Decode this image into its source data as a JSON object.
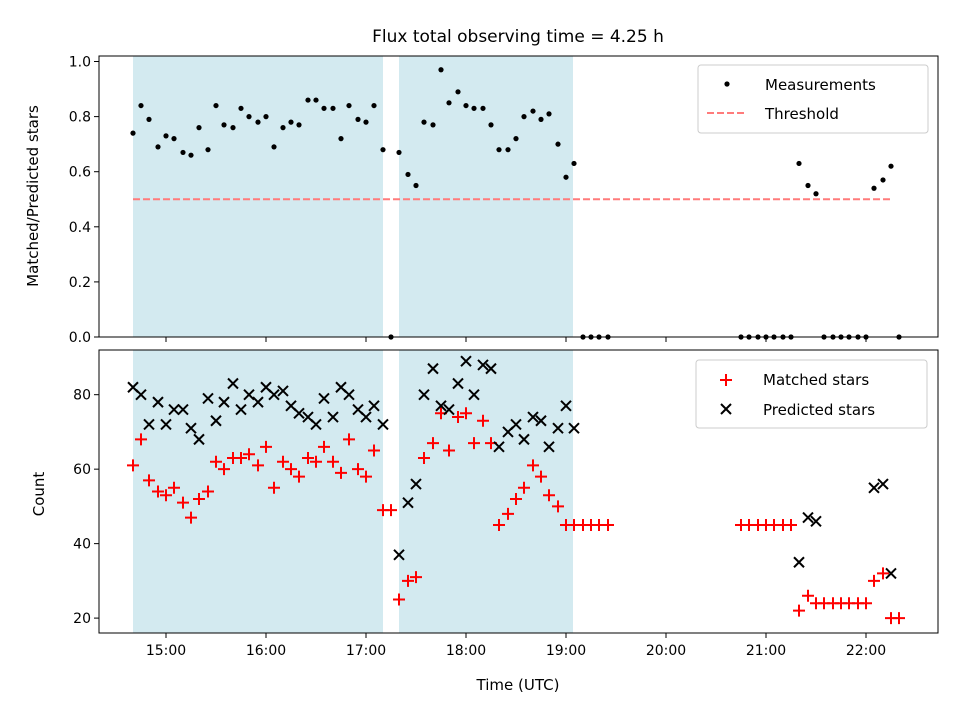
{
  "figure": {
    "title": "Flux total observing time = 4.25 h",
    "xlabel": "Time (UTC)",
    "x_tick_labels": [
      "15:00",
      "16:00",
      "17:00",
      "18:00",
      "19:00",
      "20:00",
      "21:00",
      "22:00"
    ]
  },
  "chart_data": [
    {
      "type": "scatter",
      "panel": "top",
      "ylabel": "Matched/Predicted stars",
      "xlim": [
        14.33,
        22.72
      ],
      "ylim": [
        0.0,
        1.02
      ],
      "y_ticks": [
        0.0,
        0.2,
        0.4,
        0.6,
        0.8,
        1.0
      ],
      "y_tick_labels": [
        "0.0",
        "0.2",
        "0.4",
        "0.6",
        "0.8",
        "1.0"
      ],
      "legend_position": "top-right",
      "shaded_intervals": [
        [
          14.67,
          17.17
        ],
        [
          17.33,
          19.07
        ]
      ],
      "shade_color": "#d3eaf0",
      "series": [
        {
          "name": "Measurements",
          "marker": "dot",
          "color": "#000000",
          "x": [
            14.67,
            14.75,
            14.83,
            14.92,
            15.0,
            15.08,
            15.17,
            15.25,
            15.33,
            15.42,
            15.5,
            15.58,
            15.67,
            15.75,
            15.83,
            15.92,
            16.0,
            16.08,
            16.17,
            16.25,
            16.33,
            16.42,
            16.5,
            16.58,
            16.67,
            16.75,
            16.83,
            16.92,
            17.0,
            17.08,
            17.17,
            17.25,
            17.33,
            17.42,
            17.5,
            17.58,
            17.67,
            17.75,
            17.83,
            17.92,
            18.0,
            18.08,
            18.17,
            18.25,
            18.33,
            18.42,
            18.5,
            18.58,
            18.67,
            18.75,
            18.83,
            18.92,
            19.0,
            19.08,
            19.17,
            19.25,
            19.33,
            19.42,
            20.75,
            20.83,
            20.92,
            21.0,
            21.08,
            21.17,
            21.25,
            21.33,
            21.42,
            21.5,
            21.58,
            21.67,
            21.75,
            21.83,
            21.92,
            22.0,
            22.08,
            22.17,
            22.25,
            22.33
          ],
          "y": [
            0.74,
            0.84,
            0.79,
            0.69,
            0.73,
            0.72,
            0.67,
            0.66,
            0.76,
            0.68,
            0.84,
            0.77,
            0.76,
            0.83,
            0.8,
            0.78,
            0.8,
            0.69,
            0.76,
            0.78,
            0.77,
            0.86,
            0.86,
            0.83,
            0.83,
            0.72,
            0.84,
            0.79,
            0.78,
            0.84,
            0.68,
            0.0,
            0.67,
            0.59,
            0.55,
            0.78,
            0.77,
            0.97,
            0.85,
            0.89,
            0.84,
            0.83,
            0.83,
            0.77,
            0.68,
            0.68,
            0.72,
            0.8,
            0.82,
            0.79,
            0.81,
            0.7,
            0.58,
            0.63,
            0.0,
            0.0,
            0.0,
            0.0,
            0.0,
            0.0,
            0.0,
            0.0,
            0.0,
            0.0,
            0.0,
            0.63,
            0.55,
            0.52,
            0.0,
            0.0,
            0.0,
            0.0,
            0.0,
            0.0,
            0.54,
            0.57,
            0.62,
            0.0
          ]
        },
        {
          "name": "Threshold",
          "marker": "dashed-line",
          "color": "#ff7b7b",
          "x": [
            14.67,
            22.25
          ],
          "y": [
            0.5,
            0.5
          ]
        }
      ]
    },
    {
      "type": "scatter",
      "panel": "bottom",
      "ylabel": "Count",
      "xlim": [
        14.33,
        22.72
      ],
      "ylim": [
        16,
        92
      ],
      "y_ticks": [
        20,
        40,
        60,
        80
      ],
      "y_tick_labels": [
        "20",
        "40",
        "60",
        "80"
      ],
      "legend_position": "top-right",
      "shaded_intervals": [
        [
          14.67,
          17.17
        ],
        [
          17.33,
          19.07
        ]
      ],
      "shade_color": "#d3eaf0",
      "series": [
        {
          "name": "Matched stars",
          "marker": "plus",
          "color": "#ff0000",
          "x": [
            14.67,
            14.75,
            14.83,
            14.92,
            15.0,
            15.08,
            15.17,
            15.25,
            15.33,
            15.42,
            15.5,
            15.58,
            15.67,
            15.75,
            15.83,
            15.92,
            16.0,
            16.08,
            16.17,
            16.25,
            16.33,
            16.42,
            16.5,
            16.58,
            16.67,
            16.75,
            16.83,
            16.92,
            17.0,
            17.08,
            17.17,
            17.25,
            17.33,
            17.42,
            17.5,
            17.58,
            17.67,
            17.75,
            17.83,
            17.92,
            18.0,
            18.08,
            18.17,
            18.25,
            18.33,
            18.42,
            18.5,
            18.58,
            18.67,
            18.75,
            18.83,
            18.92,
            19.0,
            19.08,
            19.17,
            19.25,
            19.33,
            19.42,
            20.75,
            20.83,
            20.92,
            21.0,
            21.08,
            21.17,
            21.25,
            21.33,
            21.42,
            21.5,
            21.58,
            21.67,
            21.75,
            21.83,
            21.92,
            22.0,
            22.08,
            22.17,
            22.25,
            22.33
          ],
          "y": [
            61,
            68,
            57,
            54,
            53,
            55,
            51,
            47,
            52,
            54,
            62,
            60,
            63,
            63,
            64,
            61,
            66,
            55,
            62,
            60,
            58,
            63,
            62,
            66,
            62,
            59,
            68,
            60,
            58,
            65,
            49,
            49,
            25,
            30,
            31,
            63,
            67,
            75,
            65,
            74,
            75,
            67,
            73,
            67,
            45,
            48,
            52,
            55,
            61,
            58,
            53,
            50,
            45,
            45,
            45,
            45,
            45,
            45,
            45,
            45,
            45,
            45,
            45,
            45,
            45,
            22,
            26,
            24,
            24,
            24,
            24,
            24,
            24,
            24,
            30,
            32,
            20,
            20
          ]
        },
        {
          "name": "Predicted stars",
          "marker": "x",
          "color": "#000000",
          "x": [
            14.67,
            14.75,
            14.83,
            14.92,
            15.0,
            15.08,
            15.17,
            15.25,
            15.33,
            15.42,
            15.5,
            15.58,
            15.67,
            15.75,
            15.83,
            15.92,
            16.0,
            16.08,
            16.17,
            16.25,
            16.33,
            16.42,
            16.5,
            16.58,
            16.67,
            16.75,
            16.83,
            16.92,
            17.0,
            17.08,
            17.17,
            17.33,
            17.42,
            17.5,
            17.58,
            17.67,
            17.75,
            17.83,
            17.92,
            18.0,
            18.08,
            18.17,
            18.25,
            18.33,
            18.42,
            18.5,
            18.58,
            18.67,
            18.75,
            18.83,
            18.92,
            19.0,
            19.08,
            21.33,
            21.42,
            21.5,
            22.08,
            22.17,
            22.25
          ],
          "y": [
            82,
            80,
            72,
            78,
            72,
            76,
            76,
            71,
            68,
            79,
            73,
            78,
            83,
            76,
            80,
            78,
            82,
            80,
            81,
            77,
            75,
            74,
            72,
            79,
            74,
            82,
            80,
            76,
            74,
            77,
            72,
            37,
            51,
            56,
            80,
            87,
            77,
            76,
            83,
            89,
            80,
            88,
            87,
            66,
            70,
            72,
            68,
            74,
            73,
            66,
            71,
            77,
            71,
            35,
            47,
            46,
            55,
            56,
            32
          ]
        }
      ]
    }
  ]
}
